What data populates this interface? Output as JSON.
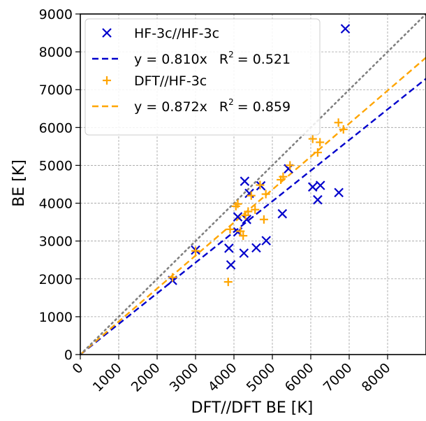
{
  "chart_data": {
    "type": "scatter",
    "xlabel": "DFT//DFT BE [K]",
    "ylabel": "BE [K]",
    "xlim": [
      0,
      9000
    ],
    "ylim": [
      0,
      9000
    ],
    "x_ticks": [
      0,
      1000,
      2000,
      3000,
      4000,
      5000,
      6000,
      7000,
      8000
    ],
    "y_ticks": [
      0,
      1000,
      2000,
      3000,
      4000,
      5000,
      6000,
      7000,
      8000,
      9000
    ],
    "grid": true,
    "legend_position": "top-left",
    "series": [
      {
        "name": "HF-3c//HF-3c",
        "kind": "scatter",
        "marker": "x",
        "color": "#0000cc",
        "points": [
          [
            2400,
            1960
          ],
          [
            3000,
            2760
          ],
          [
            3870,
            2810
          ],
          [
            3920,
            2370
          ],
          [
            4100,
            3240
          ],
          [
            4100,
            3640
          ],
          [
            4260,
            2680
          ],
          [
            4280,
            4580
          ],
          [
            4330,
            3570
          ],
          [
            4400,
            4260
          ],
          [
            4580,
            2820
          ],
          [
            4700,
            4460
          ],
          [
            4840,
            3010
          ],
          [
            5260,
            3720
          ],
          [
            5420,
            4910
          ],
          [
            6050,
            4430
          ],
          [
            6180,
            4090
          ],
          [
            6250,
            4470
          ],
          [
            6730,
            4280
          ],
          [
            6900,
            8610
          ]
        ]
      },
      {
        "name": "y = 0.810x   R² = 0.521",
        "kind": "line",
        "color": "#0000cc",
        "slope": 0.81,
        "label_text": "y = 0.810x",
        "r2_label": "R",
        "r2_sup": "2",
        "r2_value": "= 0.521"
      },
      {
        "name": "DFT//HF-3c",
        "kind": "scatter",
        "marker": "+",
        "color": "#ffa500",
        "points": [
          [
            2400,
            2040
          ],
          [
            3000,
            2740
          ],
          [
            3850,
            1920
          ],
          [
            3900,
            3310
          ],
          [
            4050,
            3920
          ],
          [
            4100,
            3980
          ],
          [
            4170,
            3260
          ],
          [
            4240,
            3140
          ],
          [
            4300,
            3680
          ],
          [
            4370,
            3780
          ],
          [
            4450,
            4200
          ],
          [
            4550,
            3830
          ],
          [
            4680,
            4480
          ],
          [
            4780,
            3570
          ],
          [
            4830,
            4240
          ],
          [
            5220,
            4620
          ],
          [
            5280,
            4700
          ],
          [
            5460,
            5000
          ],
          [
            6050,
            5700
          ],
          [
            6180,
            5340
          ],
          [
            6240,
            5610
          ],
          [
            6720,
            6130
          ],
          [
            6850,
            5950
          ]
        ]
      },
      {
        "name": "y = 0.872x   R² = 0.859",
        "kind": "line",
        "color": "#ffa500",
        "slope": 0.872,
        "label_text": "y = 0.872x",
        "r2_label": "R",
        "r2_sup": "2",
        "r2_value": "= 0.859"
      },
      {
        "name": "",
        "kind": "line",
        "color": "#808080",
        "slope": 1.0,
        "style": "dotted"
      }
    ]
  }
}
